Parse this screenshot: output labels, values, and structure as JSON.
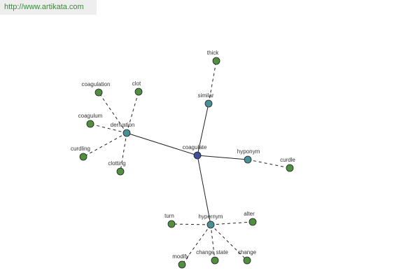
{
  "header": {
    "url": "http://www.artikata.com"
  },
  "nodes": [
    {
      "label": "coagulate"
    },
    {
      "label": "derivation"
    },
    {
      "label": "similar"
    },
    {
      "label": "hyponym"
    },
    {
      "label": "hypernym"
    },
    {
      "label": "thick"
    },
    {
      "label": "coagulation"
    },
    {
      "label": "clot"
    },
    {
      "label": "coagulum"
    },
    {
      "label": "curdling"
    },
    {
      "label": "clotting"
    },
    {
      "label": "curdle"
    },
    {
      "label": "turn"
    },
    {
      "label": "alter"
    },
    {
      "label": "modify"
    },
    {
      "label": "change state"
    },
    {
      "label": "change"
    }
  ]
}
